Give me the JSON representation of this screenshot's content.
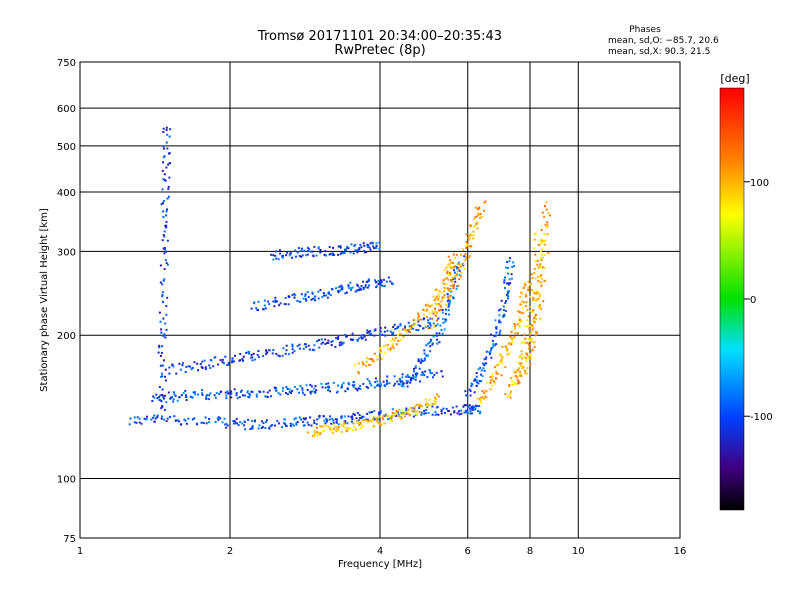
{
  "chart_data": {
    "type": "scatter",
    "title": "Tromsø 20171101 20:34:00–20:35:43",
    "subtitle": "RwPretec (8p)",
    "xlabel": "Frequency [MHz]",
    "ylabel": "Stationary phase Virtual Height [km]",
    "x_scale": "log",
    "y_scale": "log",
    "xlim": [
      1,
      16
    ],
    "ylim": [
      75,
      750
    ],
    "x_ticks": [
      1,
      2,
      4,
      6,
      8,
      10,
      16
    ],
    "y_ticks": [
      75,
      100,
      200,
      300,
      400,
      500,
      600,
      750
    ],
    "grid": true,
    "phase_box": {
      "title": "Phases",
      "line_o": "mean, sd,O: −85.7, 20.6",
      "line_x": "mean, sd,X:  90.3, 21.5"
    },
    "colorbar": {
      "label": "[deg]",
      "range": [
        -180,
        180
      ],
      "ticks": [
        100,
        0,
        -100
      ],
      "colormap": "rainbow"
    },
    "traces": [
      {
        "f": [
          1.25,
          1.5,
          1.9,
          2.2,
          2.6,
          3.0,
          3.4,
          3.8,
          4.4,
          5.2,
          6.0,
          6.3
        ],
        "h": [
          133,
          134,
          132,
          130,
          131,
          133,
          134,
          136,
          138,
          139,
          140,
          141
        ],
        "phase": -100
      },
      {
        "f": [
          1.4,
          1.6,
          1.9,
          2.2,
          2.6,
          3.0,
          3.5,
          4.0,
          4.6,
          5.3
        ],
        "h": [
          148,
          150,
          151,
          152,
          153,
          155,
          157,
          160,
          163,
          168
        ],
        "phase": -95
      },
      {
        "f": [
          1.5,
          1.8,
          2.1,
          2.5,
          3.0,
          3.5,
          4.0,
          4.6,
          5.2
        ],
        "h": [
          170,
          175,
          180,
          186,
          192,
          198,
          204,
          210,
          215
        ],
        "phase": -105
      },
      {
        "f": [
          2.2,
          2.6,
          3.0,
          3.4,
          3.8,
          4.2
        ],
        "h": [
          230,
          238,
          245,
          252,
          258,
          262
        ],
        "phase": -100
      },
      {
        "f": [
          2.4,
          2.8,
          3.2,
          3.6,
          4.0
        ],
        "h": [
          296,
          300,
          303,
          306,
          308
        ],
        "phase": -100
      },
      {
        "f": [
          2.9,
          3.2,
          3.6,
          4.0,
          4.4,
          4.8,
          5.2
        ],
        "h": [
          126,
          128,
          130,
          133,
          137,
          142,
          148
        ],
        "phase": 95
      },
      {
        "f": [
          3.6,
          4.0,
          4.5,
          5.0,
          5.4,
          5.6
        ],
        "h": [
          170,
          185,
          205,
          230,
          260,
          295
        ],
        "phase": 100
      },
      {
        "f": [
          4.4,
          4.8,
          5.2,
          5.5,
          5.8
        ],
        "h": [
          155,
          175,
          200,
          240,
          290
        ],
        "phase": -90
      },
      {
        "f": [
          5.0,
          5.4,
          5.8,
          6.1,
          6.4
        ],
        "h": [
          210,
          240,
          280,
          330,
          380
        ],
        "phase": 110
      },
      {
        "f": [
          6.0,
          6.4,
          6.8,
          7.1,
          7.3
        ],
        "h": [
          150,
          170,
          200,
          240,
          290
        ],
        "phase": -95
      },
      {
        "f": [
          6.3,
          6.8,
          7.2,
          7.6,
          7.9
        ],
        "h": [
          145,
          165,
          190,
          220,
          260
        ],
        "phase": 100
      },
      {
        "f": [
          7.2,
          7.6,
          7.9,
          8.1,
          8.3
        ],
        "h": [
          150,
          170,
          200,
          250,
          330
        ],
        "phase": 95
      },
      {
        "f": [
          7.6,
          8.0,
          8.3,
          8.5,
          8.6
        ],
        "h": [
          160,
          190,
          230,
          290,
          380
        ],
        "phase": 105
      },
      {
        "f": [
          1.45,
          1.46,
          1.47,
          1.48,
          1.49
        ],
        "h": [
          140,
          200,
          300,
          420,
          560
        ],
        "phase": -110
      }
    ]
  }
}
